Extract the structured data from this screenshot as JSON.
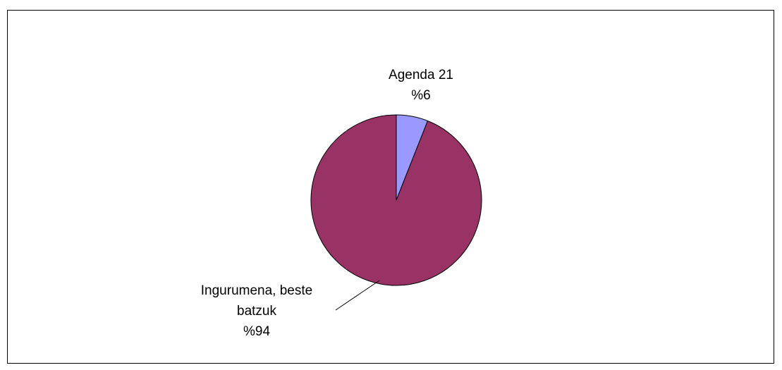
{
  "chart_data": {
    "type": "pie",
    "title": "",
    "legend": "none",
    "slices": [
      {
        "label_lines": [
          "Agenda 21"
        ],
        "value_label": "%6",
        "value": 6,
        "color": "#9999ff"
      },
      {
        "label_lines": [
          "Ingurumena, beste",
          "batzuk"
        ],
        "value_label": "%94",
        "value": 94,
        "color": "#993366"
      }
    ]
  }
}
